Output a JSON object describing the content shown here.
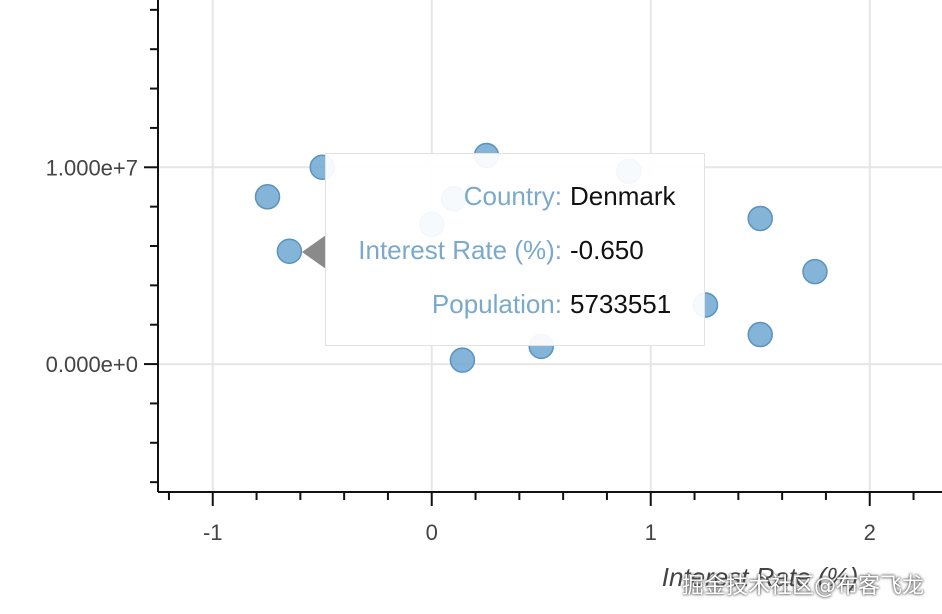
{
  "chart_data": {
    "type": "scatter",
    "xlabel": "Interest Rate (%)",
    "ylabel": "",
    "xlim": [
      -1.25,
      2.33
    ],
    "ylim": [
      -6500000,
      18500000
    ],
    "x_ticks": [
      -1,
      0,
      1,
      2
    ],
    "x_tick_labels": [
      "-1",
      "0",
      "1",
      "2"
    ],
    "y_ticks": [
      0,
      10000000
    ],
    "y_tick_labels": [
      "0.000e+0",
      "1.000e+7"
    ],
    "grid": true,
    "point_color": "#6fa8d2",
    "points": [
      {
        "x": -0.75,
        "y": 8500000
      },
      {
        "x": -0.65,
        "y": 5733551
      },
      {
        "x": -0.5,
        "y": 10000000
      },
      {
        "x": 0.0,
        "y": 7100000
      },
      {
        "x": 0.1,
        "y": 8400000
      },
      {
        "x": 0.14,
        "y": 200000
      },
      {
        "x": 0.25,
        "y": 10600000
      },
      {
        "x": 0.5,
        "y": 900000
      },
      {
        "x": 0.9,
        "y": 9800000
      },
      {
        "x": 1.25,
        "y": 3000000
      },
      {
        "x": 1.5,
        "y": 7400000
      },
      {
        "x": 1.5,
        "y": 1500000
      },
      {
        "x": 1.75,
        "y": 4700000
      }
    ]
  },
  "tooltip": {
    "rows": [
      {
        "label": "Country:",
        "value": "Denmark"
      },
      {
        "label": "Interest Rate (%):",
        "value": "-0.650"
      },
      {
        "label": "Population:",
        "value": "5733551"
      }
    ]
  },
  "watermark": "掘金技术社区@布客飞龙"
}
